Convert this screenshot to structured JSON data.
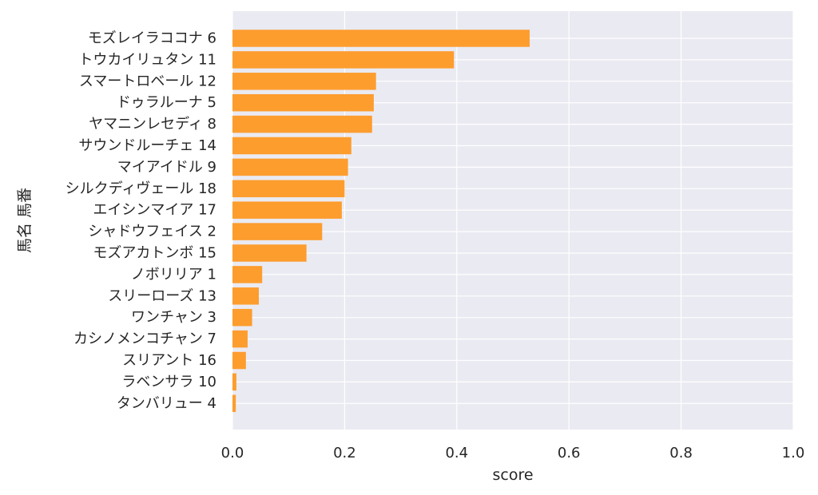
{
  "chart_data": {
    "type": "bar",
    "orientation": "horizontal",
    "xlabel": "score",
    "ylabel": "馬名 馬番",
    "xlim": [
      0,
      1.0
    ],
    "xticks": [
      "0.0",
      "0.2",
      "0.4",
      "0.6",
      "0.8",
      "1.0"
    ],
    "grid": true,
    "bar_color": "#fd9d2e",
    "background_color": "#eaeaf2",
    "categories": [
      "モズレイラココナ 6",
      "トウカイリュタン 11",
      "スマートロベール 12",
      "ドゥラルーナ 5",
      "ヤマニンレセディ 8",
      "サウンドルーチェ 14",
      "マイアイドル 9",
      "シルクディヴェール 18",
      "エイシンマイア 17",
      "シャドウフェイス 2",
      "モズアカトンボ 15",
      "ノボリリア 1",
      "スリーローズ 13",
      "ワンチャン 3",
      "カシノメンコチャン 7",
      "スリアント 16",
      "ラベンサラ 10",
      "タンバリュー 4"
    ],
    "values": [
      0.53,
      0.395,
      0.256,
      0.252,
      0.249,
      0.212,
      0.206,
      0.2,
      0.195,
      0.16,
      0.132,
      0.053,
      0.047,
      0.035,
      0.027,
      0.024,
      0.007,
      0.006
    ]
  }
}
